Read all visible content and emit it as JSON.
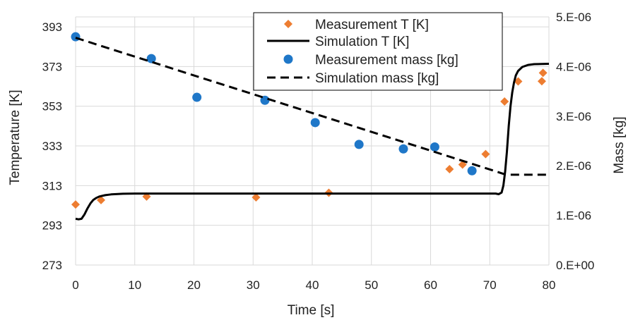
{
  "chart_data": {
    "type": "scatter",
    "x_axis": {
      "label": "Time [s]",
      "range": [
        0,
        80
      ],
      "ticks": [
        "0",
        "10",
        "20",
        "30",
        "40",
        "50",
        "60",
        "70",
        "80"
      ]
    },
    "y_left": {
      "label": "Temperature [K]",
      "range": [
        273,
        398
      ],
      "ticks": [
        "273",
        "293",
        "313",
        "333",
        "353",
        "373",
        "393"
      ]
    },
    "y_right": {
      "label": "Mass [kg]",
      "range": [
        0,
        5e-06
      ],
      "ticks": [
        "0.E+00",
        "1.E-06",
        "2.E-06",
        "3.E-06",
        "4.E-06",
        "5.E-06"
      ]
    },
    "grid": true,
    "legend_position": "top-right",
    "colors": {
      "measurement_T": "#ED7D31",
      "measurement_mass": "#1F77C8",
      "simulation": "#000000",
      "grid": "#D9D9D9"
    },
    "series": [
      {
        "name": "Measurement T [K]",
        "style": "diamond",
        "axis": "left",
        "x": [
          0,
          4.3,
          12,
          30.5,
          42.8,
          63.2,
          65.4,
          69.3,
          72.5,
          74.8,
          78.8,
          79
        ],
        "y": [
          303.5,
          305.7,
          307.5,
          307.1,
          309.4,
          321.3,
          323.6,
          328.9,
          355.4,
          365.5,
          365.6,
          369.8
        ]
      },
      {
        "name": "Simulation T [K]",
        "style": "solid",
        "axis": "left",
        "x": [
          0,
          0.5,
          1.0,
          1.5,
          2.0,
          2.5,
          3.0,
          3.5,
          4.0,
          5.0,
          6.0,
          8.0,
          10.0,
          15.0,
          30.0,
          50.0,
          71.0,
          71.5,
          72.0,
          72.3,
          72.6,
          72.9,
          73.2,
          73.5,
          73.8,
          74.1,
          74.4,
          74.8,
          75.5,
          76.5,
          77.5,
          80.0
        ],
        "y": [
          296.3,
          296.0,
          296.3,
          298.5,
          301.5,
          304.0,
          305.8,
          306.8,
          307.5,
          308.2,
          308.6,
          308.9,
          309.0,
          309.0,
          309.0,
          309.0,
          309.0,
          308.7,
          309.5,
          313.0,
          320.0,
          330.0,
          343.0,
          353.0,
          360.0,
          365.0,
          368.5,
          370.8,
          372.8,
          373.8,
          374.2,
          374.4
        ]
      },
      {
        "name": "Measurement mass [kg]",
        "style": "circle",
        "axis": "right",
        "x": [
          0,
          12.8,
          20.5,
          32,
          40.5,
          47.9,
          55.4,
          60.7,
          67
        ],
        "y": [
          4.6e-06,
          4.16e-06,
          3.38e-06,
          3.32e-06,
          2.87e-06,
          2.43e-06,
          2.34e-06,
          2.38e-06,
          1.9e-06
        ]
      },
      {
        "name": "Simulation mass [kg]",
        "style": "dashed",
        "axis": "right",
        "x": [
          0,
          71.5,
          72.5,
          73.5,
          80
        ],
        "y": [
          4.58e-06,
          1.87e-06,
          1.83e-06,
          1.82e-06,
          1.82e-06
        ]
      }
    ]
  }
}
